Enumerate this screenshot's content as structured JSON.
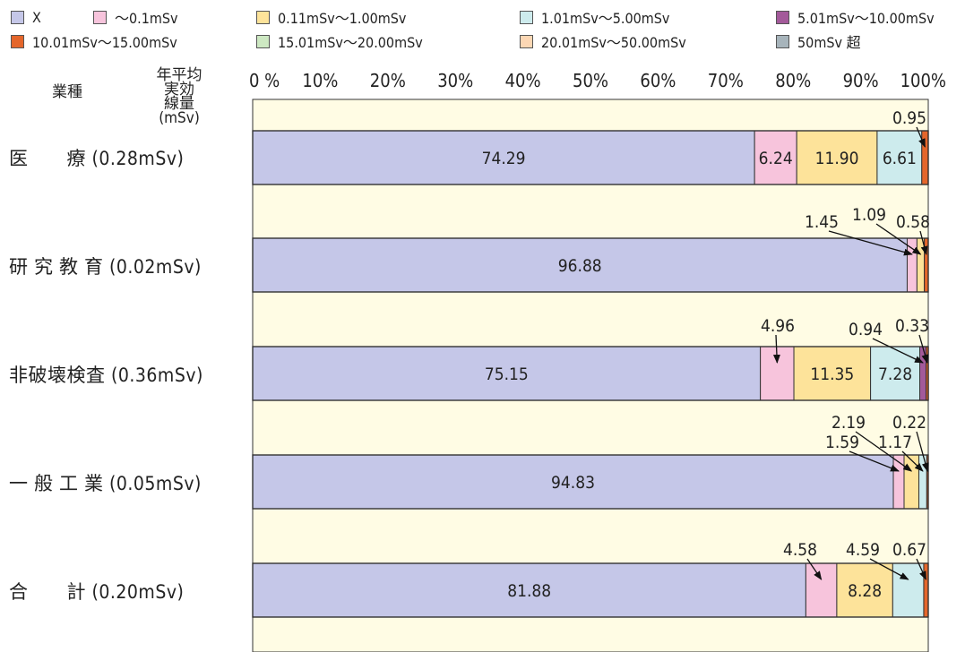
{
  "chart_data": {
    "type": "bar",
    "orientation": "horizontal",
    "stacked": true,
    "header": {
      "category": "業種",
      "dose": [
        "年平均",
        "実効",
        "線量",
        "(mSv)"
      ]
    },
    "x_ticks": [
      "0 %",
      "10%",
      "20%",
      "30%",
      "40%",
      "50%",
      "60%",
      "70%",
      "80%",
      "90%",
      "100%"
    ],
    "xlim": [
      0,
      100
    ],
    "legend_placement": "top",
    "categories": [
      {
        "name": "医　　療",
        "dose": "(0.28mSv)"
      },
      {
        "name": "研 究 教 育",
        "dose": "(0.02mSv)"
      },
      {
        "name": "非破壊検査",
        "dose": "(0.36mSv)"
      },
      {
        "name": "一 般 工 業",
        "dose": "(0.05mSv)"
      },
      {
        "name": "合　　計",
        "dose": "(0.20mSv)"
      }
    ],
    "series": [
      {
        "name": "X",
        "color": "#c5c7e8",
        "values": [
          74.29,
          96.88,
          75.15,
          94.83,
          81.88
        ],
        "labels": [
          "74.29",
          "96.88",
          "75.15",
          "94.83",
          "81.88"
        ]
      },
      {
        "name": "～0.1mSv",
        "color": "#f7c4dc",
        "values": [
          6.24,
          1.45,
          4.96,
          1.59,
          4.58
        ],
        "labels": [
          "6.24",
          "1.45",
          "4.96",
          "1.59",
          "4.58"
        ]
      },
      {
        "name": "0.11mSv～1.00mSv",
        "color": "#fde39a",
        "values": [
          11.9,
          1.09,
          11.35,
          2.19,
          8.28
        ],
        "labels": [
          "11.90",
          "1.09",
          "11.35",
          "2.19",
          "8.28"
        ]
      },
      {
        "name": "1.01mSv～5.00mSv",
        "color": "#cdebed",
        "values": [
          6.61,
          0.0,
          7.28,
          1.17,
          4.59
        ],
        "labels": [
          "6.61",
          "",
          "7.28",
          "1.17",
          "4.59"
        ]
      },
      {
        "name": "5.01mSv～10.00mSv",
        "color": "#a35a9a",
        "values": [
          0.0,
          0.0,
          0.94,
          0.0,
          0.0
        ],
        "labels": [
          "",
          "",
          "0.94",
          "",
          ""
        ]
      },
      {
        "name": "10.01mSv～15.00mSv",
        "color": "#e4662b",
        "values": [
          0.95,
          0.58,
          0.33,
          0.22,
          0.67
        ],
        "labels": [
          "0.95",
          "0.58",
          "0.33",
          "0.22",
          "0.67"
        ]
      },
      {
        "name": "15.01mSv～20.00mSv",
        "color": "#cde8c2",
        "values": [
          0,
          0,
          0,
          0,
          0
        ],
        "labels": [
          "",
          "",
          "",
          "",
          ""
        ]
      },
      {
        "name": "20.01mSv～50.00mSv",
        "color": "#fcd7b4",
        "values": [
          0,
          0,
          0,
          0,
          0
        ],
        "labels": [
          "",
          "",
          "",
          "",
          ""
        ]
      },
      {
        "name": "50mSv 超",
        "color": "#a7b4bb",
        "values": [
          0,
          0,
          0,
          0,
          0
        ],
        "labels": [
          "",
          "",
          "",
          "",
          ""
        ]
      }
    ],
    "colors": {
      "plot_background": "#fffce4",
      "border": "#333333"
    }
  }
}
